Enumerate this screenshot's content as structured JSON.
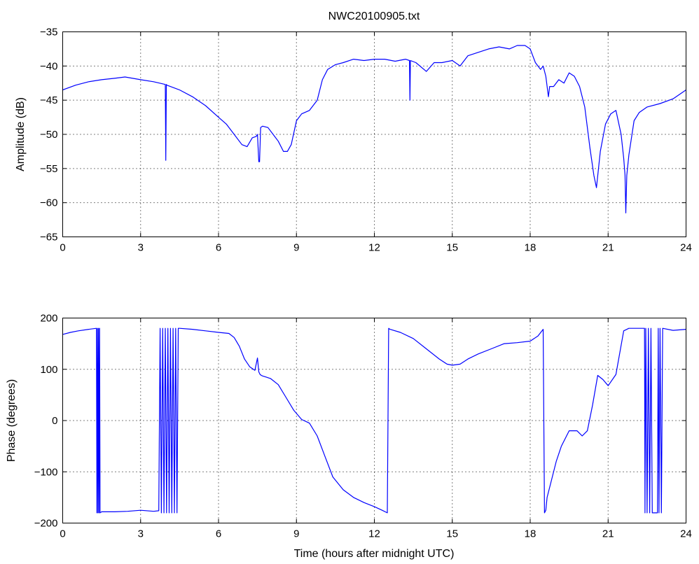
{
  "title": "NWC20100905.txt",
  "chart_data": [
    {
      "type": "line",
      "title": "NWC20100905.txt",
      "xlabel": "",
      "ylabel": "Amplitude (dB)",
      "xlim": [
        0,
        24
      ],
      "ylim": [
        -65,
        -35
      ],
      "xticks": [
        0,
        3,
        6,
        9,
        12,
        15,
        18,
        21,
        24
      ],
      "yticks": [
        -65,
        -60,
        -55,
        -50,
        -45,
        -40,
        -35
      ],
      "xtick_labels": [
        "0",
        "3",
        "6",
        "9",
        "12",
        "15",
        "18",
        "21",
        "24"
      ],
      "ytick_labels": [
        "-65",
        "-60",
        "-55",
        "-50",
        "-45",
        "-40",
        "-35"
      ],
      "grid": true,
      "color": "#0000ff",
      "series": [
        {
          "x": [
            0,
            0.5,
            1.0,
            1.5,
            2.0,
            2.4,
            3.0,
            3.5,
            3.95,
            3.97,
            3.99,
            4.01,
            4.5,
            5.0,
            5.5,
            6.0,
            6.3,
            6.6,
            6.9,
            7.1,
            7.3,
            7.45,
            7.5,
            7.55,
            7.58,
            7.62,
            7.7,
            7.9,
            8.1,
            8.3,
            8.5,
            8.65,
            8.8,
            9.0,
            9.2,
            9.5,
            9.8,
            10.0,
            10.2,
            10.5,
            10.8,
            11.2,
            11.6,
            12.0,
            12.4,
            12.8,
            13.2,
            13.35,
            13.37,
            13.39,
            13.6,
            14.0,
            14.3,
            14.6,
            15.0,
            15.3,
            15.6,
            16.0,
            16.4,
            16.8,
            17.2,
            17.5,
            17.8,
            18.0,
            18.2,
            18.4,
            18.5,
            18.6,
            18.7,
            18.75,
            18.9,
            19.1,
            19.3,
            19.5,
            19.7,
            19.9,
            20.1,
            20.3,
            20.45,
            20.55,
            20.7,
            20.9,
            21.1,
            21.3,
            21.5,
            21.6,
            21.65,
            21.68,
            21.72,
            21.8,
            22.0,
            22.2,
            22.5,
            23.0,
            23.5,
            24.0
          ],
          "y": [
            -43.5,
            -42.8,
            -42.3,
            -42.0,
            -41.8,
            -41.6,
            -42.0,
            -42.3,
            -42.7,
            -53.8,
            -42.7,
            -42.8,
            -43.5,
            -44.5,
            -45.8,
            -47.5,
            -48.5,
            -50.0,
            -51.5,
            -51.8,
            -50.5,
            -50.3,
            -50.0,
            -54.0,
            -54.0,
            -49.0,
            -48.8,
            -49.0,
            -50.0,
            -51.0,
            -52.5,
            -52.5,
            -51.5,
            -48.0,
            -47.0,
            -46.5,
            -45.0,
            -42.0,
            -40.5,
            -39.8,
            -39.5,
            -39.0,
            -39.2,
            -39.0,
            -39.0,
            -39.3,
            -39.0,
            -39.2,
            -45.0,
            -39.2,
            -39.5,
            -40.8,
            -39.5,
            -39.5,
            -39.2,
            -40.0,
            -38.5,
            -38.0,
            -37.5,
            -37.2,
            -37.5,
            -37.0,
            -37.0,
            -37.5,
            -39.5,
            -40.5,
            -40.0,
            -41.5,
            -44.5,
            -43.0,
            -43.0,
            -42.0,
            -42.5,
            -41.0,
            -41.5,
            -43.0,
            -46.0,
            -52.0,
            -56.0,
            -57.8,
            -52.5,
            -48.5,
            -47.0,
            -46.5,
            -50.0,
            -53.5,
            -56.0,
            -61.5,
            -56.0,
            -53.0,
            -48.0,
            -46.8,
            -46.0,
            -45.5,
            -44.8,
            -43.5
          ]
        }
      ]
    },
    {
      "type": "line",
      "title": "",
      "xlabel": "Time (hours after midnight UTC)",
      "ylabel": "Phase (degrees)",
      "xlim": [
        0,
        24
      ],
      "ylim": [
        -200,
        200
      ],
      "xticks": [
        0,
        3,
        6,
        9,
        12,
        15,
        18,
        21,
        24
      ],
      "yticks": [
        -200,
        -100,
        0,
        100,
        200
      ],
      "xtick_labels": [
        "0",
        "3",
        "6",
        "9",
        "12",
        "15",
        "18",
        "21",
        "24"
      ],
      "ytick_labels": [
        "-200",
        "-100",
        "0",
        "100",
        "200"
      ],
      "grid": true,
      "color": "#0000ff",
      "series": [
        {
          "x": [
            0,
            0.3,
            0.6,
            1.0,
            1.3,
            1.32,
            1.34,
            1.36,
            1.38,
            1.4,
            1.42,
            1.44,
            1.5,
            2.0,
            2.5,
            3.0,
            3.5,
            3.7,
            3.75,
            3.8,
            3.85,
            3.9,
            3.95,
            4.0,
            4.05,
            4.1,
            4.15,
            4.2,
            4.25,
            4.3,
            4.35,
            4.4,
            4.45,
            4.5,
            5.0,
            5.5,
            6.0,
            6.4,
            6.6,
            6.8,
            7.0,
            7.2,
            7.4,
            7.5,
            7.55,
            7.6,
            7.65,
            7.7,
            8.0,
            8.3,
            8.6,
            8.9,
            9.2,
            9.5,
            9.8,
            10.1,
            10.4,
            10.8,
            11.2,
            11.6,
            12.0,
            12.3,
            12.5,
            12.55,
            12.6,
            13.0,
            13.5,
            14.0,
            14.5,
            14.8,
            15.0,
            15.3,
            15.6,
            16.0,
            16.5,
            17.0,
            17.5,
            18.0,
            18.3,
            18.5,
            18.55,
            18.6,
            18.65,
            18.8,
            19.0,
            19.2,
            19.5,
            19.8,
            20.0,
            20.2,
            20.4,
            20.6,
            20.8,
            21.0,
            21.3,
            21.6,
            21.8,
            22.0,
            22.2,
            22.4,
            22.42,
            22.45,
            22.5,
            22.55,
            22.6,
            22.65,
            22.7,
            22.9,
            22.93,
            22.96,
            23.0,
            23.05,
            23.1,
            23.5,
            24.0
          ],
          "y": [
            168,
            172,
            175,
            178,
            180,
            -180,
            180,
            -180,
            180,
            -180,
            180,
            -180,
            -178,
            -178,
            -177,
            -175,
            -177,
            -176,
            180,
            -180,
            180,
            -180,
            180,
            -180,
            180,
            -180,
            180,
            -180,
            180,
            -180,
            180,
            -180,
            180,
            180,
            178,
            175,
            172,
            170,
            162,
            145,
            120,
            105,
            98,
            122,
            95,
            90,
            88,
            87,
            82,
            70,
            45,
            20,
            2,
            -5,
            -30,
            -70,
            -110,
            -135,
            -150,
            -160,
            -168,
            -175,
            -180,
            180,
            178,
            172,
            160,
            140,
            120,
            110,
            108,
            110,
            120,
            130,
            140,
            150,
            152,
            155,
            165,
            178,
            -180,
            -175,
            -150,
            -120,
            -80,
            -50,
            -20,
            -20,
            -30,
            -20,
            30,
            88,
            80,
            68,
            90,
            175,
            180,
            180,
            180,
            180,
            -180,
            180,
            -180,
            180,
            -180,
            180,
            -180,
            -180,
            180,
            -180,
            180,
            -180,
            180,
            176,
            178
          ]
        }
      ]
    }
  ]
}
